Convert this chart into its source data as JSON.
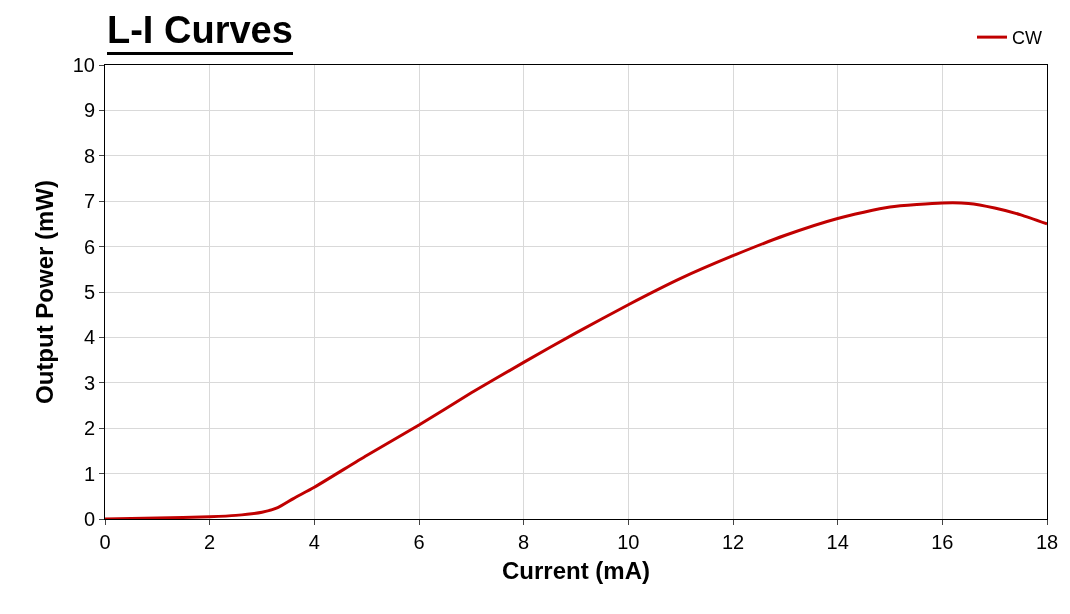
{
  "chart_data": {
    "type": "line",
    "title": "L-I Curves",
    "xlabel": "Current (mA)",
    "ylabel": "Output Power (mW)",
    "x": [
      0,
      1,
      2,
      2.5,
      3,
      3.3,
      3.6,
      4,
      5,
      6,
      7,
      8,
      9,
      10,
      11,
      12,
      13,
      14,
      15,
      16,
      16.5,
      17,
      17.5,
      18
    ],
    "series": [
      {
        "name": "CW",
        "color": "#c00000",
        "values": [
          0,
          0.02,
          0.05,
          0.08,
          0.15,
          0.25,
          0.45,
          0.7,
          1.4,
          2.07,
          2.78,
          3.45,
          4.1,
          4.72,
          5.3,
          5.8,
          6.25,
          6.62,
          6.87,
          6.96,
          6.95,
          6.85,
          6.7,
          6.5
        ]
      }
    ],
    "xlim": [
      0,
      18
    ],
    "xticks": [
      0,
      2,
      4,
      6,
      8,
      10,
      12,
      14,
      16,
      18
    ],
    "ylim": [
      0,
      10
    ],
    "yticks": [
      0,
      1,
      2,
      3,
      4,
      5,
      6,
      7,
      8,
      9,
      10
    ],
    "grid": true,
    "legend": "top right",
    "line_style": "solid",
    "marker": "none"
  }
}
